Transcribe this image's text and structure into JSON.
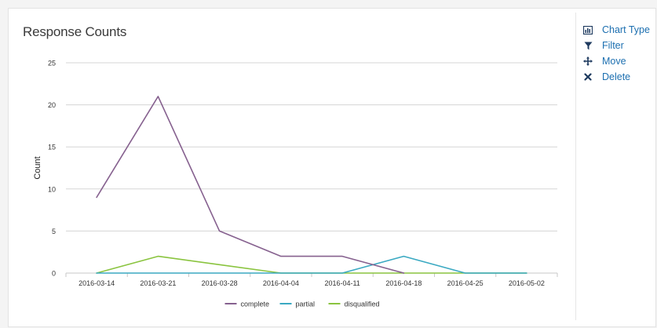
{
  "panel": {
    "title": "Response Counts"
  },
  "menu": {
    "items": [
      {
        "label": "Chart Type",
        "icon": "bar-chart-icon"
      },
      {
        "label": "Filter",
        "icon": "filter-icon"
      },
      {
        "label": "Move",
        "icon": "move-icon"
      },
      {
        "label": "Delete",
        "icon": "delete-icon"
      }
    ]
  },
  "colors": {
    "complete": "#86618f",
    "partial": "#3aa9c2",
    "disqualified": "#8ac43f",
    "grid": "#d5d5d5",
    "axis_text": "#333333",
    "menu_link": "#1c6fb0",
    "menu_icon": "#1e3a5f"
  },
  "chart_data": {
    "type": "line",
    "title": "Response Counts",
    "xlabel": "",
    "ylabel": "Count",
    "categories": [
      "2016-03-14",
      "2016-03-21",
      "2016-03-28",
      "2016-04-04",
      "2016-04-11",
      "2016-04-18",
      "2016-04-25",
      "2016-05-02"
    ],
    "ylim": [
      0,
      25
    ],
    "yticks": [
      0,
      5,
      10,
      15,
      20,
      25
    ],
    "grid": true,
    "legend_position": "bottom",
    "series": [
      {
        "name": "complete",
        "values": [
          9,
          21,
          5,
          2,
          2,
          0,
          null,
          null
        ]
      },
      {
        "name": "partial",
        "values": [
          0,
          0,
          0,
          0,
          0,
          2,
          0,
          0
        ]
      },
      {
        "name": "disqualified",
        "values": [
          0,
          2,
          1,
          0,
          0,
          0,
          0,
          0
        ]
      }
    ]
  }
}
